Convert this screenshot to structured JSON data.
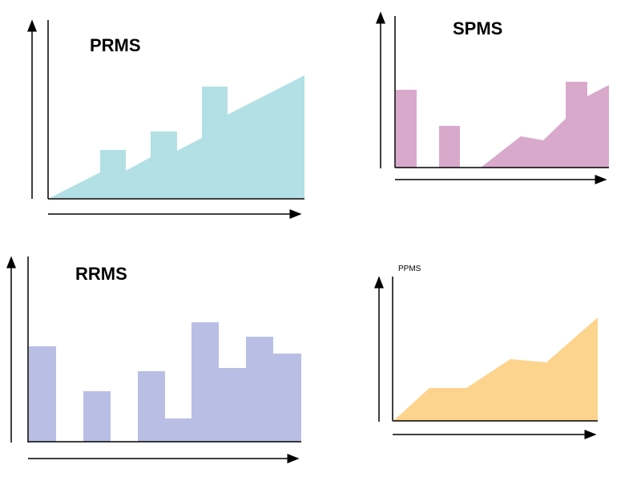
{
  "panels": [
    {
      "label": "PRMS"
    },
    {
      "label": "SPMS"
    },
    {
      "label": "RRMS"
    },
    {
      "label": "PPMS"
    }
  ]
}
